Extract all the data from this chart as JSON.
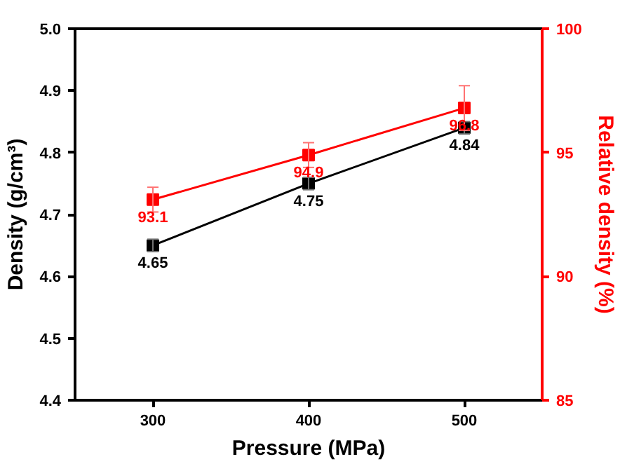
{
  "chart_data": {
    "type": "line",
    "xlabel": "Pressure (MPa)",
    "ylabel": "Density (g/cm³)",
    "y2label": "Relative density (%)",
    "x": [
      300,
      400,
      500
    ],
    "series": [
      {
        "color": "#000000",
        "values": [
          4.65,
          4.75,
          4.84
        ],
        "errors": [
          0.01,
          0.01,
          0.01
        ]
      },
      {
        "color": "#ff0000",
        "values": [
          93.1,
          94.9,
          96.8
        ],
        "errors": [
          0.5,
          0.5,
          0.9
        ],
        "axis": "y2"
      }
    ],
    "xlim": [
      250,
      550
    ],
    "xticks": [
      300,
      400,
      500
    ],
    "ylim": [
      4.4,
      5.0
    ],
    "yticks": [
      4.4,
      4.5,
      4.6,
      4.7,
      4.8,
      4.9,
      {
        "value": 5,
        "label": "5.0"
      }
    ],
    "y2lim": [
      85,
      100
    ],
    "y2ticks": [
      85,
      90,
      95,
      100
    ],
    "marker": "square",
    "line_style": "solid",
    "data_labels": true,
    "grid": false
  }
}
